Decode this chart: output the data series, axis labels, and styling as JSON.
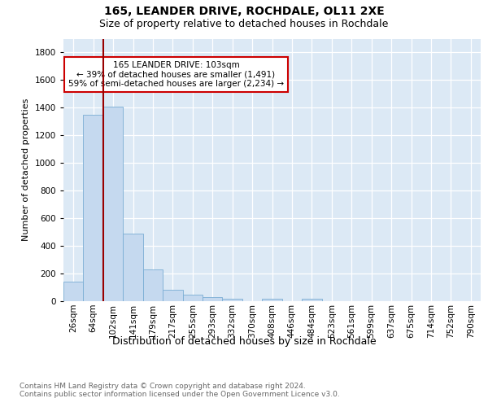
{
  "title_line1": "165, LEANDER DRIVE, ROCHDALE, OL11 2XE",
  "title_line2": "Size of property relative to detached houses in Rochdale",
  "xlabel": "Distribution of detached houses by size in Rochdale",
  "ylabel": "Number of detached properties",
  "footnote": "Contains HM Land Registry data © Crown copyright and database right 2024.\nContains public sector information licensed under the Open Government Licence v3.0.",
  "bar_labels": [
    "26sqm",
    "64sqm",
    "102sqm",
    "141sqm",
    "179sqm",
    "217sqm",
    "255sqm",
    "293sqm",
    "332sqm",
    "370sqm",
    "408sqm",
    "446sqm",
    "484sqm",
    "523sqm",
    "561sqm",
    "599sqm",
    "637sqm",
    "675sqm",
    "714sqm",
    "752sqm",
    "790sqm"
  ],
  "bar_values": [
    140,
    1350,
    1410,
    490,
    230,
    85,
    50,
    30,
    20,
    0,
    15,
    0,
    15,
    0,
    0,
    0,
    0,
    0,
    0,
    0,
    0
  ],
  "bar_color": "#c5d9ef",
  "bar_edge_color": "#7aadd4",
  "background_color": "#dce9f5",
  "grid_color": "#ffffff",
  "vline_color": "#990000",
  "annotation_text": "165 LEANDER DRIVE: 103sqm\n← 39% of detached houses are smaller (1,491)\n59% of semi-detached houses are larger (2,234) →",
  "annotation_box_color": "#ffffff",
  "annotation_box_edge": "#cc0000",
  "ylim": [
    0,
    1900
  ],
  "yticks": [
    0,
    200,
    400,
    600,
    800,
    1000,
    1200,
    1400,
    1600,
    1800
  ],
  "title_fontsize": 10,
  "subtitle_fontsize": 9,
  "xlabel_fontsize": 9,
  "ylabel_fontsize": 8,
  "tick_fontsize": 7.5,
  "annot_fontsize": 7.5,
  "footnote_fontsize": 6.5
}
